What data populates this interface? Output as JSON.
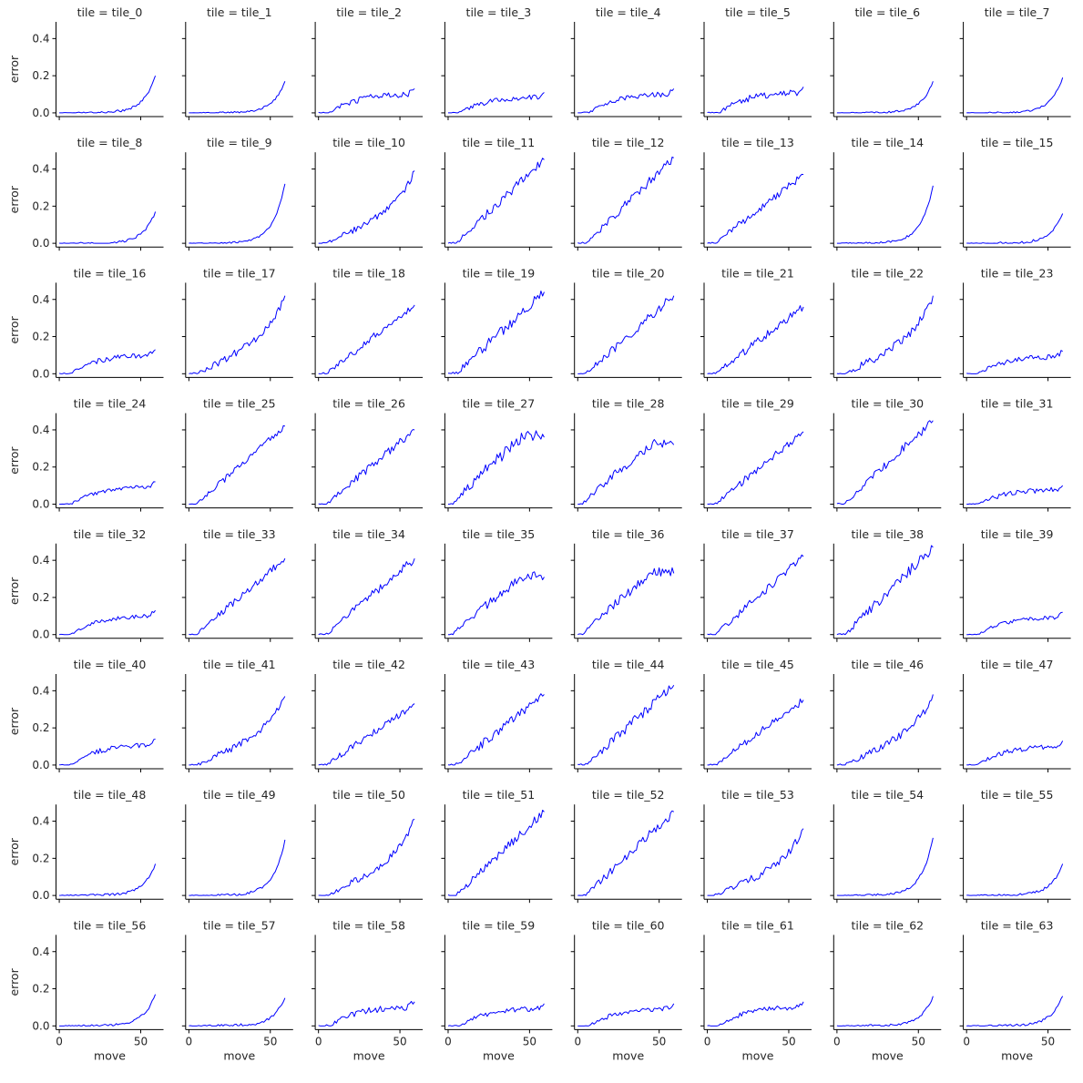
{
  "chart_data": {
    "type": "line",
    "layout": "facet-grid",
    "rows": 8,
    "cols": 8,
    "facet_title_prefix": "tile = ",
    "xlabel": "move",
    "ylabel": "error",
    "xlim": [
      -2,
      64
    ],
    "ylim": [
      -0.02,
      0.49
    ],
    "xticks": [
      0,
      50
    ],
    "yticks": [
      0.0,
      0.2,
      0.4
    ],
    "ytick_labels": [
      "0.0",
      "0.2",
      "0.4"
    ],
    "line_color": "#0000ff",
    "x_points": 60,
    "facets": [
      {
        "tile": "tile_0",
        "shape": "exp",
        "final": 0.2,
        "noise": 0.004
      },
      {
        "tile": "tile_1",
        "shape": "exp",
        "final": 0.17,
        "noise": 0.003
      },
      {
        "tile": "tile_2",
        "shape": "plateau",
        "final": 0.13,
        "noise": 0.01
      },
      {
        "tile": "tile_3",
        "shape": "plateau",
        "final": 0.11,
        "noise": 0.008
      },
      {
        "tile": "tile_4",
        "shape": "plateau",
        "final": 0.13,
        "noise": 0.008
      },
      {
        "tile": "tile_5",
        "shape": "plateau",
        "final": 0.14,
        "noise": 0.01
      },
      {
        "tile": "tile_6",
        "shape": "exp",
        "final": 0.17,
        "noise": 0.003
      },
      {
        "tile": "tile_7",
        "shape": "exp",
        "final": 0.19,
        "noise": 0.003
      },
      {
        "tile": "tile_8",
        "shape": "exp",
        "final": 0.17,
        "noise": 0.004
      },
      {
        "tile": "tile_9",
        "shape": "exp",
        "final": 0.32,
        "noise": 0.003
      },
      {
        "tile": "tile_10",
        "shape": "linexp",
        "final": 0.39,
        "noise": 0.01
      },
      {
        "tile": "tile_11",
        "shape": "linear",
        "final": 0.45,
        "noise": 0.014
      },
      {
        "tile": "tile_12",
        "shape": "linear",
        "final": 0.46,
        "noise": 0.014
      },
      {
        "tile": "tile_13",
        "shape": "linear",
        "final": 0.37,
        "noise": 0.012
      },
      {
        "tile": "tile_14",
        "shape": "exp",
        "final": 0.31,
        "noise": 0.004
      },
      {
        "tile": "tile_15",
        "shape": "exp",
        "final": 0.16,
        "noise": 0.004
      },
      {
        "tile": "tile_16",
        "shape": "plateau",
        "final": 0.13,
        "noise": 0.008
      },
      {
        "tile": "tile_17",
        "shape": "linexp",
        "final": 0.42,
        "noise": 0.012
      },
      {
        "tile": "tile_18",
        "shape": "linear",
        "final": 0.37,
        "noise": 0.012
      },
      {
        "tile": "tile_19",
        "shape": "linear",
        "final": 0.44,
        "noise": 0.016
      },
      {
        "tile": "tile_20",
        "shape": "linear",
        "final": 0.42,
        "noise": 0.014
      },
      {
        "tile": "tile_21",
        "shape": "linear",
        "final": 0.36,
        "noise": 0.012
      },
      {
        "tile": "tile_22",
        "shape": "linexp",
        "final": 0.42,
        "noise": 0.014
      },
      {
        "tile": "tile_23",
        "shape": "plateau",
        "final": 0.12,
        "noise": 0.008
      },
      {
        "tile": "tile_24",
        "shape": "plateau",
        "final": 0.12,
        "noise": 0.006
      },
      {
        "tile": "tile_25",
        "shape": "linear",
        "final": 0.42,
        "noise": 0.01
      },
      {
        "tile": "tile_26",
        "shape": "linear",
        "final": 0.4,
        "noise": 0.012
      },
      {
        "tile": "tile_27",
        "shape": "concave",
        "final": 0.36,
        "noise": 0.018
      },
      {
        "tile": "tile_28",
        "shape": "concave",
        "final": 0.32,
        "noise": 0.014
      },
      {
        "tile": "tile_29",
        "shape": "linear",
        "final": 0.39,
        "noise": 0.012
      },
      {
        "tile": "tile_30",
        "shape": "linear",
        "final": 0.45,
        "noise": 0.014
      },
      {
        "tile": "tile_31",
        "shape": "plateau",
        "final": 0.1,
        "noise": 0.008
      },
      {
        "tile": "tile_32",
        "shape": "plateau",
        "final": 0.13,
        "noise": 0.006
      },
      {
        "tile": "tile_33",
        "shape": "linear",
        "final": 0.41,
        "noise": 0.012
      },
      {
        "tile": "tile_34",
        "shape": "linear",
        "final": 0.41,
        "noise": 0.014
      },
      {
        "tile": "tile_35",
        "shape": "concave",
        "final": 0.31,
        "noise": 0.014
      },
      {
        "tile": "tile_36",
        "shape": "concave",
        "final": 0.33,
        "noise": 0.014
      },
      {
        "tile": "tile_37",
        "shape": "linear",
        "final": 0.42,
        "noise": 0.012
      },
      {
        "tile": "tile_38",
        "shape": "linear",
        "final": 0.47,
        "noise": 0.016
      },
      {
        "tile": "tile_39",
        "shape": "plateau",
        "final": 0.12,
        "noise": 0.006
      },
      {
        "tile": "tile_40",
        "shape": "plateau",
        "final": 0.14,
        "noise": 0.008
      },
      {
        "tile": "tile_41",
        "shape": "linexp",
        "final": 0.37,
        "noise": 0.012
      },
      {
        "tile": "tile_42",
        "shape": "linear",
        "final": 0.33,
        "noise": 0.012
      },
      {
        "tile": "tile_43",
        "shape": "linear",
        "final": 0.38,
        "noise": 0.014
      },
      {
        "tile": "tile_44",
        "shape": "linear",
        "final": 0.43,
        "noise": 0.016
      },
      {
        "tile": "tile_45",
        "shape": "linear",
        "final": 0.35,
        "noise": 0.012
      },
      {
        "tile": "tile_46",
        "shape": "linexp",
        "final": 0.38,
        "noise": 0.014
      },
      {
        "tile": "tile_47",
        "shape": "plateau",
        "final": 0.13,
        "noise": 0.008
      },
      {
        "tile": "tile_48",
        "shape": "exp",
        "final": 0.17,
        "noise": 0.004
      },
      {
        "tile": "tile_49",
        "shape": "exp",
        "final": 0.3,
        "noise": 0.004
      },
      {
        "tile": "tile_50",
        "shape": "linexp",
        "final": 0.41,
        "noise": 0.012
      },
      {
        "tile": "tile_51",
        "shape": "linear",
        "final": 0.45,
        "noise": 0.014
      },
      {
        "tile": "tile_52",
        "shape": "linear",
        "final": 0.45,
        "noise": 0.014
      },
      {
        "tile": "tile_53",
        "shape": "linexp",
        "final": 0.36,
        "noise": 0.012
      },
      {
        "tile": "tile_54",
        "shape": "exp",
        "final": 0.31,
        "noise": 0.004
      },
      {
        "tile": "tile_55",
        "shape": "exp",
        "final": 0.17,
        "noise": 0.004
      },
      {
        "tile": "tile_56",
        "shape": "exp",
        "final": 0.17,
        "noise": 0.004
      },
      {
        "tile": "tile_57",
        "shape": "exp",
        "final": 0.15,
        "noise": 0.005
      },
      {
        "tile": "tile_58",
        "shape": "plateau",
        "final": 0.13,
        "noise": 0.01
      },
      {
        "tile": "tile_59",
        "shape": "plateau",
        "final": 0.12,
        "noise": 0.008
      },
      {
        "tile": "tile_60",
        "shape": "plateau",
        "final": 0.12,
        "noise": 0.008
      },
      {
        "tile": "tile_61",
        "shape": "plateau",
        "final": 0.13,
        "noise": 0.008
      },
      {
        "tile": "tile_62",
        "shape": "exp",
        "final": 0.16,
        "noise": 0.004
      },
      {
        "tile": "tile_63",
        "shape": "exp",
        "final": 0.16,
        "noise": 0.004
      }
    ]
  }
}
